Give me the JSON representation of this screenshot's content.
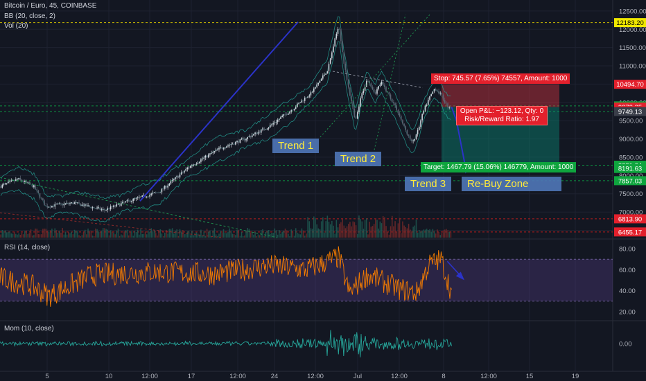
{
  "legend": {
    "title": "Bitcoin / Euro, 45, COINBASE",
    "bb": "BB (20, close, 2)",
    "vol": "Vol (20)",
    "rsi": "RSI (14, close)",
    "mom": "Mom (10, close)"
  },
  "annotations": {
    "trend1": "Trend 1",
    "trend2": "Trend 2",
    "trend3": "Trend 3",
    "rebuy": "Re-Buy Zone"
  },
  "position": {
    "stop_text": "Stop: 745.57 (7.65%) 74557, Amount: 1000",
    "target_text": "Target: 1467.79 (15.06%) 146779, Amount: 1000",
    "pnl_line1": "Open P&L: −123.12, Qty: 0",
    "pnl_line2": "Risk/Reward Ratio: 1.97"
  },
  "colors": {
    "background": "#131722",
    "bull": "#d1d4dc",
    "bear": "#5d6473",
    "bb": "#26a69a",
    "trendline": "#2b33c8",
    "rsi": "#f57c00",
    "rsi_band": "#7e57c2",
    "mom": "#26a69a",
    "stop_zone": "#f23645",
    "target_zone": "#089981",
    "annotation_bg": "#4e75b5",
    "annotation_text": "#ffeb3b"
  },
  "chart_data": [
    {
      "type": "candlestick",
      "title": "Bitcoin / Euro, 45, COINBASE",
      "price_axis_ticks": [
        12500,
        12000,
        11500,
        11000,
        10500,
        10000,
        9500,
        9000,
        8500,
        8000,
        7500,
        7000,
        6500
      ],
      "price_axis_tick_labels": [
        "12500.00",
        "12000.00",
        "11500.00",
        "11000.00",
        "10500.00",
        "10000.00",
        "9500.00",
        "9000.00",
        "8500.00",
        "8000.00",
        "7500.00",
        "7000.00",
        "6500.00"
      ],
      "price_labels": [
        {
          "text": "12183.20",
          "value": 12183.2,
          "style": "yellow"
        },
        {
          "text": "10494.70",
          "value": 10494.7,
          "style": "red"
        },
        {
          "text": "9904.55",
          "value": 9904.55,
          "style": "green"
        },
        {
          "text": "9872.25",
          "value": 9872.25,
          "style": "red"
        },
        {
          "text": "00:54",
          "value": 9775,
          "style": "red"
        },
        {
          "text": "9749.13",
          "value": 9749.13,
          "style": "gray"
        },
        {
          "text": "8281.34",
          "value": 8281.34,
          "style": "green"
        },
        {
          "text": "8191.63",
          "value": 8191.63,
          "style": "green"
        },
        {
          "text": "7857.03",
          "value": 7857.03,
          "style": "green"
        },
        {
          "text": "6813.90",
          "value": 6813.9,
          "style": "red"
        },
        {
          "text": "6455.17",
          "value": 6455.17,
          "style": "red"
        }
      ],
      "x_tick_labels": [
        "5",
        "10",
        "12:00",
        "17",
        "12:00",
        "24",
        "12:00",
        "Jul",
        "12:00",
        "8",
        "12:00",
        "15",
        "19"
      ],
      "ylim": [
        6300,
        12650
      ],
      "approx_close_path": [
        {
          "x": 0,
          "y": 7700
        },
        {
          "x": 0.03,
          "y": 7900
        },
        {
          "x": 0.055,
          "y": 7700
        },
        {
          "x": 0.075,
          "y": 7150
        },
        {
          "x": 0.12,
          "y": 7250
        },
        {
          "x": 0.17,
          "y": 7050
        },
        {
          "x": 0.21,
          "y": 7300
        },
        {
          "x": 0.26,
          "y": 7550
        },
        {
          "x": 0.31,
          "y": 8250
        },
        {
          "x": 0.36,
          "y": 8750
        },
        {
          "x": 0.4,
          "y": 9000
        },
        {
          "x": 0.44,
          "y": 9350
        },
        {
          "x": 0.48,
          "y": 9850
        },
        {
          "x": 0.51,
          "y": 10300
        },
        {
          "x": 0.535,
          "y": 10900
        },
        {
          "x": 0.545,
          "y": 11600
        },
        {
          "x": 0.553,
          "y": 12150
        },
        {
          "x": 0.562,
          "y": 11000
        },
        {
          "x": 0.572,
          "y": 10150
        },
        {
          "x": 0.58,
          "y": 9450
        },
        {
          "x": 0.59,
          "y": 10200
        },
        {
          "x": 0.6,
          "y": 10650
        },
        {
          "x": 0.612,
          "y": 10250
        },
        {
          "x": 0.622,
          "y": 10550
        },
        {
          "x": 0.635,
          "y": 10200
        },
        {
          "x": 0.648,
          "y": 9800
        },
        {
          "x": 0.66,
          "y": 9300
        },
        {
          "x": 0.672,
          "y": 8900
        },
        {
          "x": 0.68,
          "y": 9100
        },
        {
          "x": 0.69,
          "y": 9700
        },
        {
          "x": 0.7,
          "y": 10100
        },
        {
          "x": 0.71,
          "y": 10400
        },
        {
          "x": 0.72,
          "y": 10200
        },
        {
          "x": 0.73,
          "y": 9900
        },
        {
          "x": 0.737,
          "y": 9872
        }
      ],
      "trend_arrow_to": {
        "x": 0.76,
        "y": 8200
      },
      "series": [
        {
          "name": "BB (20, close, 2)"
        },
        {
          "name": "Vol (20)"
        }
      ]
    },
    {
      "type": "line",
      "title": "RSI (14, close)",
      "y_ticks": [
        80,
        60,
        40,
        20
      ],
      "y_tick_labels": [
        "80.00",
        "60.00",
        "40.00",
        "20.00"
      ],
      "ylim": [
        12,
        88
      ],
      "band": [
        30,
        70
      ],
      "approx_path": [
        {
          "x": 0,
          "y": 52
        },
        {
          "x": 0.05,
          "y": 45
        },
        {
          "x": 0.08,
          "y": 35
        },
        {
          "x": 0.15,
          "y": 55
        },
        {
          "x": 0.25,
          "y": 58
        },
        {
          "x": 0.35,
          "y": 56
        },
        {
          "x": 0.44,
          "y": 64
        },
        {
          "x": 0.5,
          "y": 60
        },
        {
          "x": 0.553,
          "y": 72
        },
        {
          "x": 0.57,
          "y": 38
        },
        {
          "x": 0.6,
          "y": 55
        },
        {
          "x": 0.65,
          "y": 42
        },
        {
          "x": 0.68,
          "y": 38
        },
        {
          "x": 0.7,
          "y": 65
        },
        {
          "x": 0.72,
          "y": 70
        },
        {
          "x": 0.737,
          "y": 38
        }
      ]
    },
    {
      "type": "line",
      "title": "Mom (10, close)",
      "y_ticks": [
        0
      ],
      "y_tick_labels": [
        "0.00"
      ],
      "ylim": [
        -1400,
        1400
      ]
    }
  ]
}
